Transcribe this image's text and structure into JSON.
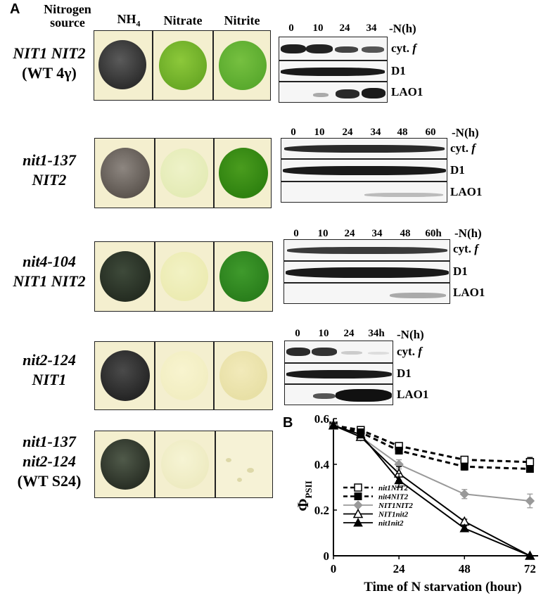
{
  "panel_a": {
    "letter": "A",
    "header": {
      "nitrogen_line1": "Nitrogen",
      "nitrogen_line2": "source",
      "nh4_base": "NH",
      "nh4_sub": "4",
      "nitrate": "Nitrate",
      "nitrite": "Nitrite"
    },
    "blot_labels": {
      "cytf_prefix": "cyt. ",
      "cytf_italic": "f",
      "d1": "D1",
      "lao1": "LAO1"
    },
    "rows": [
      {
        "strain_line1": "NIT1 NIT2",
        "strain_line2": "(WT 4γ)",
        "timepoints": [
          "0",
          "10",
          "24",
          "34"
        ],
        "time_unit": "-N(h)"
      },
      {
        "strain_line1": "nit1-137",
        "strain_line2": "NIT2",
        "timepoints": [
          "0",
          "10",
          "24",
          "34",
          "48",
          "60"
        ],
        "time_unit": "-N(h)"
      },
      {
        "strain_line1": "nit4-104",
        "strain_line2": "NIT1 NIT2",
        "timepoints": [
          "0",
          "10",
          "24",
          "34",
          "48",
          "60h"
        ],
        "time_unit": "-N(h)"
      },
      {
        "strain_line1": "nit2-124",
        "strain_line2": "NIT1",
        "timepoints": [
          "0",
          "10",
          "24",
          "34h"
        ],
        "time_unit": "-N(h)"
      },
      {
        "strain_line1": "nit1-137",
        "strain_line2": "nit2-124",
        "strain_line3": "(WT S24)"
      }
    ]
  },
  "panel_b": {
    "letter": "B",
    "chart_data": {
      "type": "line",
      "ylabel_base": "Φ",
      "ylabel_sub": "PSII",
      "xlabel": "Time of N starvation (hour)",
      "xlim": [
        0,
        75
      ],
      "ylim": [
        0,
        0.6
      ],
      "xticks": [
        "0",
        "24",
        "48",
        "72"
      ],
      "yticks": [
        "0",
        "0.2",
        "0.4",
        "0.6"
      ],
      "x": [
        0,
        10,
        24,
        48,
        72
      ],
      "series": [
        {
          "name": "nit1NIT2",
          "values": [
            0.57,
            0.55,
            0.48,
            0.42,
            0.41
          ],
          "err": [
            0.015,
            0.01,
            0.015,
            0.015,
            0.02
          ],
          "marker": "square-open",
          "line": "dashed",
          "color": "#000000"
        },
        {
          "name": "nit4NIT2",
          "values": [
            0.57,
            0.54,
            0.46,
            0.39,
            0.38
          ],
          "err": [
            0.015,
            0.01,
            0.015,
            0.015,
            0.015
          ],
          "marker": "square-filled",
          "line": "dashed",
          "color": "#000000"
        },
        {
          "name": "NIT1NIT2",
          "values": [
            0.57,
            0.52,
            0.4,
            0.27,
            0.24
          ],
          "err": [
            0.015,
            0.01,
            0.02,
            0.02,
            0.03
          ],
          "marker": "diamond-filled",
          "line": "solid",
          "color": "#999999"
        },
        {
          "name": "NIT1nit2",
          "values": [
            0.57,
            0.52,
            0.36,
            0.15,
            0.0
          ],
          "err": [
            0.01,
            0.01,
            0.03,
            0.01,
            0.0
          ],
          "marker": "triangle-open",
          "line": "solid",
          "color": "#000000"
        },
        {
          "name": "nit1nit2",
          "values": [
            0.57,
            0.53,
            0.33,
            0.12,
            0.0
          ],
          "err": [
            0.01,
            0.01,
            0.03,
            0.01,
            0.0
          ],
          "marker": "triangle-filled",
          "line": "solid",
          "color": "#000000"
        }
      ]
    }
  }
}
